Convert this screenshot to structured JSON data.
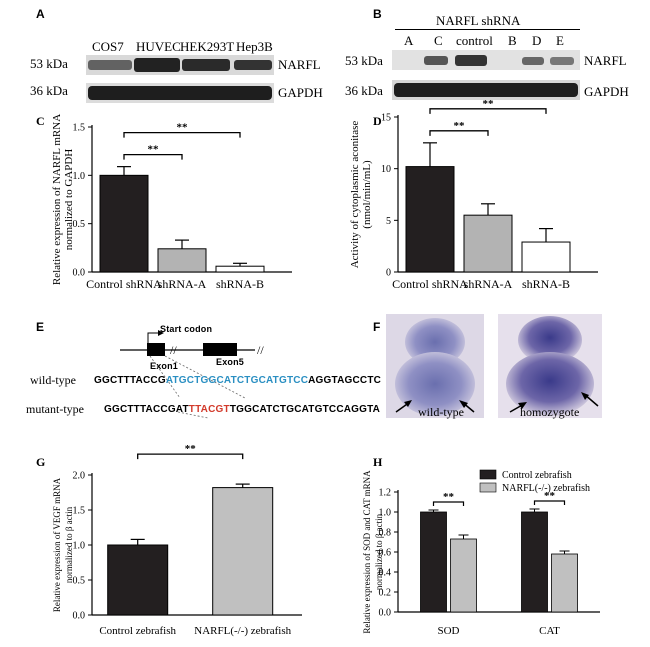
{
  "panels": {
    "A": {
      "letter": "A",
      "kda_top": "53 kDa",
      "kda_bottom": "36 kDa",
      "lanes": [
        "COS7",
        "HUVEC",
        "HEK293T",
        "Hep3B"
      ],
      "band_top": "NARFL",
      "band_bottom": "GAPDH"
    },
    "B": {
      "letter": "B",
      "header": "NARFL shRNA",
      "kda_top": "53 kDa",
      "kda_bottom": "36 kDa",
      "lanes": [
        "A",
        "C",
        "control",
        "B",
        "D",
        "E"
      ],
      "band_top": "NARFL",
      "band_bottom": "GAPDH"
    },
    "E": {
      "letter": "E",
      "start_codon": "Start codon",
      "exon1": "Exon1",
      "exon5": "Exon5",
      "wt_label": "wild-type",
      "mut_label": "mutant-type",
      "wt_pre": "GGCTTTACCG",
      "wt_hl": "ATGCTGGCATCTGCATGTCC",
      "wt_post": "AGGTAGCCTC",
      "mut_pre": "GGCTTTACCGAT",
      "mut_red": "TTACGT",
      "mut_post": "TGGCATCTGCATGTCCAGGTA"
    },
    "F": {
      "letter": "F",
      "left_label": "wild-type",
      "right_label": "homozygote"
    }
  },
  "chart_data": [
    {
      "id": "C",
      "type": "bar",
      "letter": "C",
      "categories": [
        "Control shRNA",
        "shRNA-A",
        "shRNA-B"
      ],
      "values": [
        1.0,
        0.24,
        0.06
      ],
      "errors": [
        0.09,
        0.09,
        0.03
      ],
      "colors": [
        "#231f20",
        "#b3b3b3",
        "#ffffff"
      ],
      "ylabel": "Relative expression of NARFL mRNA normalized to GAPDH",
      "ylim": [
        0,
        1.5
      ],
      "yticks": [
        0.0,
        0.5,
        1.0,
        1.5
      ],
      "significance": [
        {
          "from": 0,
          "to": 1,
          "label": "**"
        },
        {
          "from": 0,
          "to": 2,
          "label": "**"
        }
      ]
    },
    {
      "id": "D",
      "type": "bar",
      "letter": "D",
      "categories": [
        "Control shRNA",
        "shRNA-A",
        "shRNA-B"
      ],
      "values": [
        10.2,
        5.5,
        2.9
      ],
      "errors": [
        2.3,
        1.1,
        1.3
      ],
      "colors": [
        "#231f20",
        "#b3b3b3",
        "#ffffff"
      ],
      "ylabel": "Activity of cytoplasmic aconitase (nmol/min/mL)",
      "ylim": [
        0,
        15
      ],
      "yticks": [
        0,
        5,
        10,
        15
      ],
      "significance": [
        {
          "from": 0,
          "to": 1,
          "label": "**"
        },
        {
          "from": 0,
          "to": 2,
          "label": "**"
        }
      ]
    },
    {
      "id": "G",
      "type": "bar",
      "letter": "G",
      "categories": [
        "Control zebrafish",
        "NARFL(-/-) zebrafish"
      ],
      "values": [
        1.0,
        1.82
      ],
      "errors": [
        0.08,
        0.05
      ],
      "colors": [
        "#231f20",
        "#c0c0c0"
      ],
      "ylabel": "Relative expression of VEGF mRNA normalized to β actin",
      "ylim": [
        0,
        2.0
      ],
      "yticks": [
        0.0,
        0.5,
        1.0,
        1.5,
        2.0
      ],
      "significance": [
        {
          "from": 0,
          "to": 1,
          "label": "**"
        }
      ]
    },
    {
      "id": "H",
      "type": "bar",
      "letter": "H",
      "categories": [
        "SOD",
        "CAT"
      ],
      "series": [
        {
          "name": "Control zebrafish",
          "values": [
            1.0,
            1.0
          ],
          "errors": [
            0.02,
            0.03
          ],
          "color": "#231f20"
        },
        {
          "name": "NARFL(-/-) zebrafish",
          "values": [
            0.73,
            0.58
          ],
          "errors": [
            0.04,
            0.03
          ],
          "color": "#c0c0c0"
        }
      ],
      "ylabel": "Relative expression of SOD and CAT mRNA normalized to β actin",
      "ylim": [
        0,
        1.2
      ],
      "yticks": [
        0.0,
        0.2,
        0.4,
        0.6,
        0.8,
        1.0,
        1.2
      ],
      "legend": "top-right",
      "significance": [
        {
          "group": 0,
          "label": "**"
        },
        {
          "group": 1,
          "label": "**"
        }
      ]
    }
  ]
}
